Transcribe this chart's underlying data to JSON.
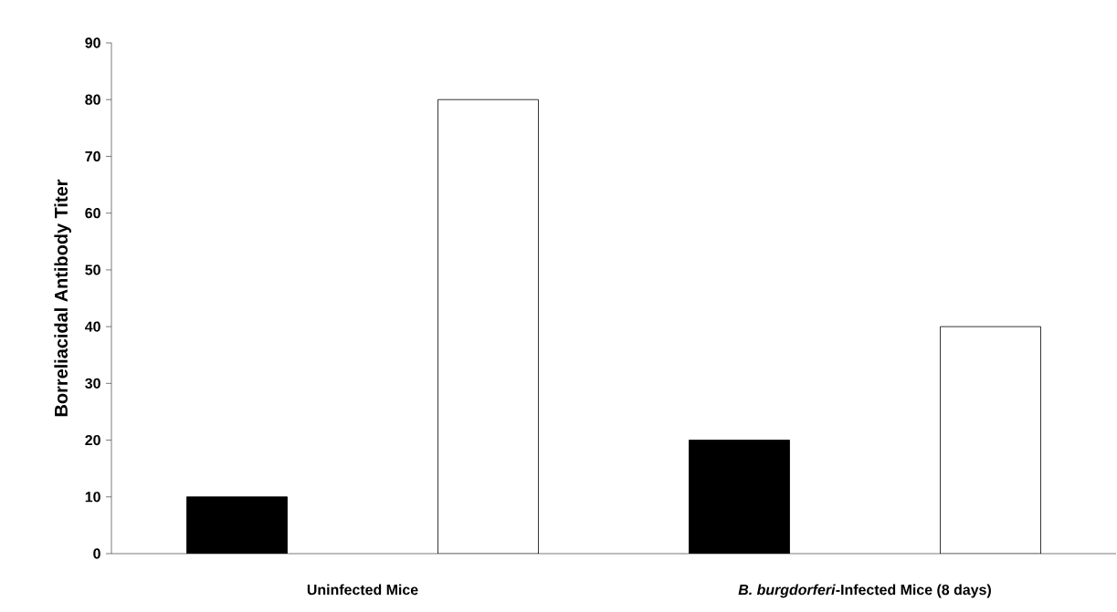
{
  "chart_data": {
    "type": "bar",
    "ylabel": "Borreliacidal Antibody Titer",
    "categories": [
      "Uninfected Mice",
      "*B. burgdorferi*-Infected Mice (8 days)"
    ],
    "series": [
      {
        "color": "#000000",
        "values": [
          10,
          20
        ]
      },
      {
        "color": "#ffffff",
        "values": [
          80,
          40
        ]
      }
    ],
    "ylim": [
      0,
      90
    ],
    "yticks": [
      0,
      10,
      20,
      30,
      40,
      50,
      60,
      70,
      80,
      90
    ],
    "grid": false,
    "legend": false
  }
}
